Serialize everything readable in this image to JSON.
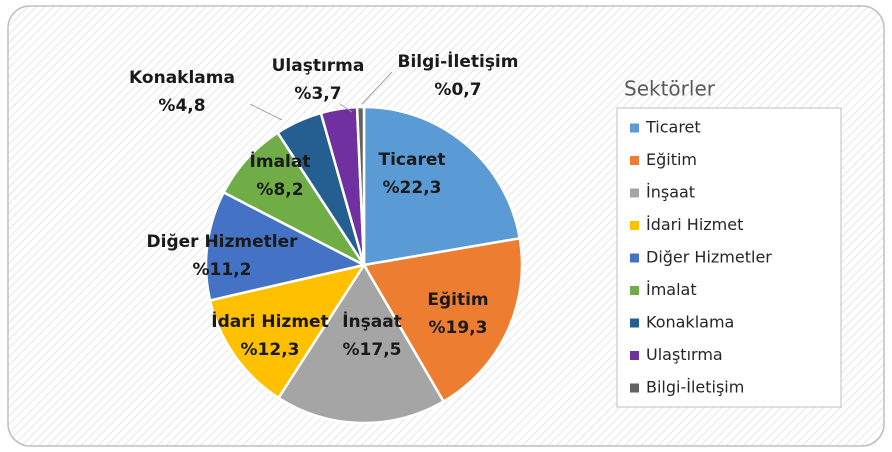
{
  "chart_data": {
    "type": "pie",
    "legend_title": "Sektörler",
    "legend": "right",
    "categories": [
      "Ticaret",
      "Eğitim",
      "İnşaat",
      "İdari Hizmet",
      "Diğer Hizmetler",
      "İmalat",
      "Konaklama",
      "Ulaştırma",
      "Bilgi-İletişim"
    ],
    "values": [
      22.3,
      19.3,
      17.5,
      12.3,
      11.2,
      8.2,
      4.8,
      3.7,
      0.7
    ],
    "value_labels": [
      "%22,3",
      "%19,3",
      "%17,5",
      "%12,3",
      "%11,2",
      "%8,2",
      "%4,8",
      "%3,7",
      "%0,7"
    ],
    "colors": [
      "#5b9bd5",
      "#ed7d31",
      "#a5a5a5",
      "#ffc000",
      "#4472c4",
      "#70ad47",
      "#255e91",
      "#7030a0",
      "#636363"
    ]
  }
}
